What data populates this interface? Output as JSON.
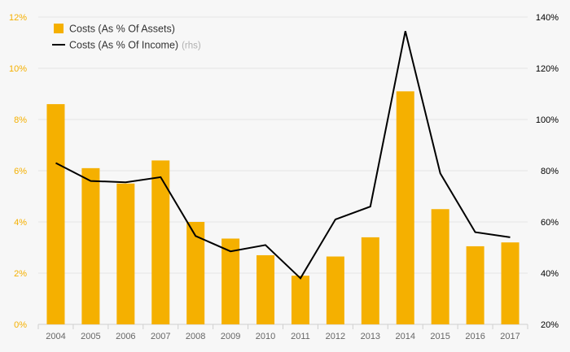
{
  "chart_data": {
    "type": "bar+line",
    "categories": [
      "2004",
      "2005",
      "2006",
      "2007",
      "2008",
      "2009",
      "2010",
      "2011",
      "2012",
      "2013",
      "2014",
      "2015",
      "2016",
      "2017"
    ],
    "series": [
      {
        "name": "Costs (As % Of Assets)",
        "type": "bar",
        "axis": "left",
        "color": "#f5b000",
        "values": [
          8.6,
          6.1,
          5.5,
          6.4,
          4.0,
          3.35,
          2.7,
          1.9,
          2.65,
          3.4,
          9.1,
          4.5,
          3.05,
          3.2
        ]
      },
      {
        "name": "Costs (As % Of Income)",
        "type": "line",
        "axis": "right",
        "color": "#000000",
        "values": [
          83,
          76,
          75.5,
          77.5,
          54.5,
          48.5,
          51,
          38,
          61,
          66,
          134.5,
          79,
          56,
          54
        ]
      }
    ],
    "legend": {
      "bar_label": "Costs (As % Of Assets)",
      "line_label": "Costs (As % Of Income)",
      "line_suffix": "(rhs)",
      "position": "top-left"
    },
    "y_left": {
      "min": 0,
      "max": 12,
      "step": 2,
      "ticks": [
        "0%",
        "2%",
        "4%",
        "6%",
        "8%",
        "10%",
        "12%"
      ],
      "color": "#f5b000"
    },
    "y_right": {
      "min": 20,
      "max": 140,
      "step": 20,
      "ticks": [
        "20%",
        "40%",
        "60%",
        "80%",
        "100%",
        "120%",
        "140%"
      ],
      "color": "#000000"
    },
    "grid": true,
    "title": ""
  }
}
